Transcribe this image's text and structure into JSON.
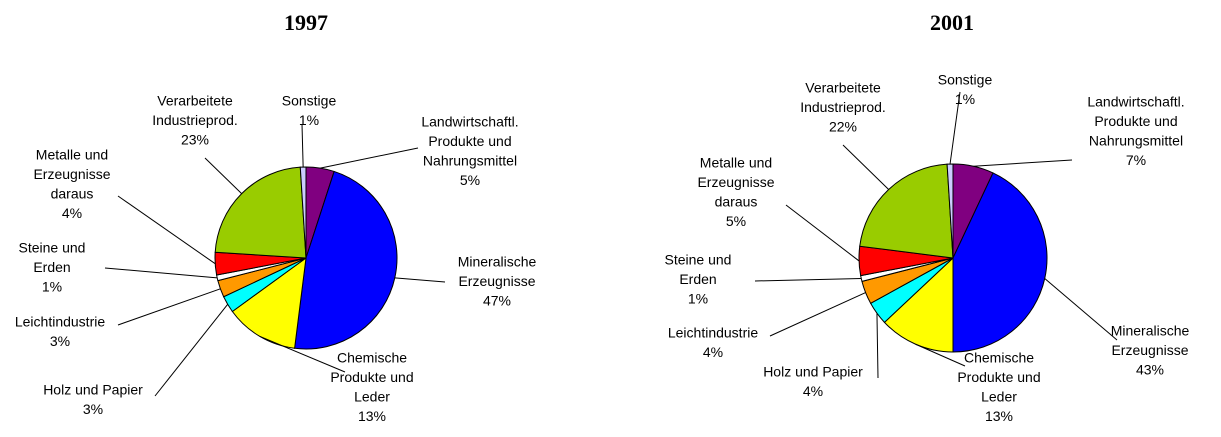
{
  "chart_data": [
    {
      "type": "pie",
      "title": "1997",
      "categories": [
        [
          "Landwirtschaftl.",
          "Produkte und",
          "Nahrungsmittel"
        ],
        [
          "Mineralische",
          "Erzeugnisse"
        ],
        [
          "Chemische",
          "Produkte und",
          "Leder"
        ],
        [
          "Holz und Papier"
        ],
        [
          "Leichtindustrie"
        ],
        [
          "Steine und",
          "Erden"
        ],
        [
          "Metalle und",
          "Erzeugnisse",
          "daraus"
        ],
        [
          "Verarbeitete",
          "Industrieprod."
        ],
        [
          "Sonstige"
        ]
      ],
      "values": [
        5,
        47,
        13,
        3,
        3,
        1,
        4,
        23,
        1
      ],
      "value_labels": [
        "5%",
        "47%",
        "13%",
        "3%",
        "3%",
        "1%",
        "4%",
        "23%",
        "1%"
      ],
      "colors": [
        "#800080",
        "#0000ff",
        "#ffff00",
        "#00ffff",
        "#ff9900",
        "#ffffff",
        "#ff0000",
        "#99cc00",
        "#ccccff"
      ]
    },
    {
      "type": "pie",
      "title": "2001",
      "categories": [
        [
          "Landwirtschaftl.",
          "Produkte und",
          "Nahrungsmittel"
        ],
        [
          "Mineralische",
          "Erzeugnisse"
        ],
        [
          "Chemische",
          "Produkte und",
          "Leder"
        ],
        [
          "Holz und Papier"
        ],
        [
          "Leichtindustrie"
        ],
        [
          "Steine und",
          "Erden"
        ],
        [
          "Metalle und",
          "Erzeugnisse",
          "daraus"
        ],
        [
          "Verarbeitete",
          "Industrieprod."
        ],
        [
          "Sonstige"
        ]
      ],
      "values": [
        7,
        43,
        13,
        4,
        4,
        1,
        5,
        22,
        1
      ],
      "value_labels": [
        "7%",
        "43%",
        "13%",
        "4%",
        "4%",
        "1%",
        "5%",
        "22%",
        "1%"
      ],
      "colors": [
        "#800080",
        "#0000ff",
        "#ffff00",
        "#00ffff",
        "#ff9900",
        "#ffffff",
        "#ff0000",
        "#99cc00",
        "#ccccff"
      ]
    }
  ]
}
